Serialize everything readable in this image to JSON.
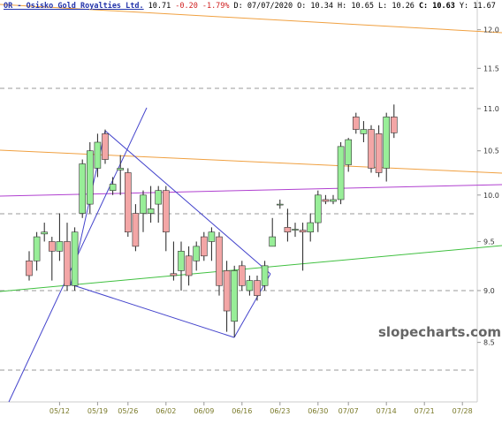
{
  "chart_data": {
    "type": "candlestick",
    "title": "OR - Osisko Gold Royalties Ltd.",
    "header": [
      "10.71",
      "-0.20",
      "-1.79%",
      "D: 07/07/2020",
      "O: 10.34",
      "H: 10.65",
      "L: 10.26",
      "C: 10.63",
      "Y: 11.67"
    ],
    "watermark": "slopecharts.com",
    "log_scale": true,
    "ylim": [
      7.96,
      12.4
    ],
    "yticks": [
      8.5,
      9.0,
      9.5,
      10.0,
      10.5,
      11.0,
      11.5,
      12.0
    ],
    "categories": [
      "05/06",
      "05/07",
      "05/08",
      "05/11",
      "05/12",
      "05/13",
      "05/14",
      "05/15",
      "05/18",
      "05/19",
      "05/20",
      "05/21",
      "05/22",
      "05/26",
      "05/27",
      "05/28",
      "05/29",
      "06/01",
      "06/02",
      "06/03",
      "06/04",
      "06/05",
      "06/08",
      "06/09",
      "06/10",
      "06/11",
      "06/12",
      "06/15",
      "06/16",
      "06/17",
      "06/18",
      "06/19",
      "06/22",
      "06/23",
      "06/24",
      "06/25",
      "06/26",
      "06/29",
      "06/30",
      "07/01",
      "07/02",
      "07/06",
      "07/07",
      "07/08",
      "07/09",
      "07/10",
      "07/13",
      "07/14",
      "07/15",
      "07/16",
      "07/17",
      "07/20",
      "07/21",
      "07/22",
      "07/23",
      "07/24",
      "07/27",
      "07/28"
    ],
    "xticks": [
      "05/12",
      "05/19",
      "05/26",
      "06/02",
      "06/09",
      "06/16",
      "06/23",
      "06/30",
      "07/07",
      "07/14",
      "07/21",
      "07/28"
    ],
    "open": [
      9.3,
      9.3,
      9.58,
      9.5,
      9.4,
      9.5,
      9.05,
      9.8,
      9.9,
      10.3,
      10.7,
      10.05,
      10.28,
      10.25,
      9.8,
      9.8,
      9.8,
      9.9,
      10.05,
      9.17,
      9.2,
      9.35,
      9.3,
      9.55,
      9.5,
      9.55,
      9.2,
      8.7,
      9.25,
      9.0,
      9.1,
      9.05,
      9.45,
      9.9,
      9.65,
      9.62,
      9.62,
      9.6,
      9.7,
      9.95,
      9.93,
      9.95,
      10.34,
      10.9,
      10.7,
      10.75,
      10.7,
      10.3,
      10.9,
      null,
      null,
      null,
      null,
      null,
      null,
      null,
      null,
      null
    ],
    "high": [
      9.4,
      9.6,
      9.7,
      9.55,
      9.8,
      9.7,
      9.65,
      10.4,
      10.6,
      10.7,
      10.75,
      10.2,
      10.45,
      10.3,
      9.9,
      10.05,
      10.1,
      10.1,
      10.1,
      9.5,
      9.5,
      9.45,
      9.5,
      9.6,
      9.65,
      9.6,
      9.3,
      9.25,
      9.3,
      9.15,
      9.15,
      9.3,
      9.75,
      9.95,
      9.85,
      9.7,
      9.7,
      9.8,
      10.05,
      10.0,
      10.0,
      10.6,
      10.65,
      10.95,
      10.85,
      10.8,
      10.8,
      10.95,
      11.05,
      null,
      null,
      null,
      null,
      null,
      null,
      null,
      null,
      null
    ],
    "low": [
      9.1,
      9.2,
      9.5,
      9.1,
      9.3,
      9.0,
      9.0,
      9.75,
      9.8,
      10.2,
      10.35,
      10.0,
      10.0,
      9.55,
      9.4,
      9.6,
      9.7,
      9.7,
      9.4,
      9.1,
      9.0,
      9.05,
      9.2,
      9.3,
      9.3,
      8.95,
      8.6,
      8.55,
      9.0,
      8.95,
      8.9,
      9.0,
      9.45,
      9.85,
      9.5,
      9.55,
      9.2,
      9.5,
      9.6,
      9.9,
      9.9,
      9.9,
      10.26,
      10.7,
      10.6,
      10.25,
      10.2,
      10.15,
      10.65,
      null,
      null,
      null,
      null,
      null,
      null,
      null,
      null,
      null
    ],
    "close": [
      9.15,
      9.55,
      9.6,
      9.4,
      9.5,
      9.05,
      9.6,
      10.35,
      10.5,
      10.6,
      10.4,
      10.12,
      10.3,
      9.6,
      9.45,
      10.0,
      9.85,
      10.05,
      9.6,
      9.15,
      9.4,
      9.15,
      9.45,
      9.35,
      9.6,
      9.05,
      8.8,
      9.2,
      9.05,
      9.1,
      8.95,
      9.25,
      9.55,
      9.9,
      9.6,
      9.63,
      9.6,
      9.7,
      10.0,
      9.93,
      9.95,
      10.55,
      10.63,
      10.75,
      10.75,
      10.3,
      10.25,
      10.9,
      10.71,
      null,
      null,
      null,
      null,
      null,
      null,
      null,
      null,
      null
    ],
    "up_color": "#98ee98",
    "down_color": "#f3a6a6"
  }
}
